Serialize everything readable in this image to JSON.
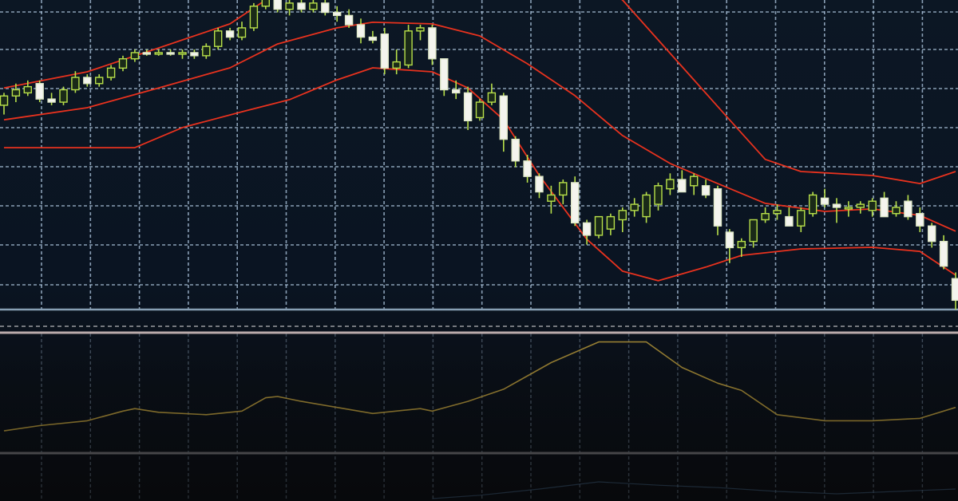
{
  "chart_data": {
    "type": "candlestick",
    "title": "",
    "xlabel": "",
    "ylabel": "",
    "grid": true,
    "ylim": [
      0,
      100
    ],
    "colors": {
      "up": "#b8e04a",
      "down": "#f4f4ee",
      "bands": "#e8321e",
      "indicator": "#b89a3c",
      "indicator2": "#4a6a8c",
      "grid": "#b4cde6",
      "background": "#0b1522"
    },
    "candles": [
      [
        66,
        70,
        63,
        69
      ],
      [
        69,
        73,
        67,
        71
      ],
      [
        70,
        74,
        69,
        72
      ],
      [
        73,
        74,
        67,
        68
      ],
      [
        68,
        70,
        66,
        67
      ],
      [
        67,
        72,
        66,
        71
      ],
      [
        71,
        77,
        70,
        75
      ],
      [
        75,
        76,
        72,
        73
      ],
      [
        73,
        76,
        72,
        75
      ],
      [
        75,
        79,
        74,
        78
      ],
      [
        78,
        82,
        77,
        81
      ],
      [
        81,
        84,
        80,
        83
      ],
      [
        83,
        84,
        82,
        82.5
      ],
      [
        82.5,
        84,
        82,
        83
      ],
      [
        83,
        84,
        82,
        82.5
      ],
      [
        82.5,
        84,
        81,
        83
      ],
      [
        83,
        84,
        81,
        82
      ],
      [
        82,
        86,
        81,
        85
      ],
      [
        85,
        91,
        84,
        90
      ],
      [
        90,
        91,
        87,
        88
      ],
      [
        88,
        93,
        87,
        91
      ],
      [
        91,
        99,
        90,
        98
      ],
      [
        98,
        103,
        97,
        102
      ],
      [
        102,
        104,
        96,
        97
      ],
      [
        97,
        100,
        95,
        99
      ],
      [
        99,
        100,
        96,
        97
      ],
      [
        97,
        100,
        96,
        99
      ],
      [
        99,
        100,
        95,
        96
      ],
      [
        96,
        98,
        93,
        95
      ],
      [
        95,
        97,
        91,
        92
      ],
      [
        92,
        94,
        86,
        88
      ],
      [
        88,
        90,
        86,
        87
      ],
      [
        89,
        91,
        76,
        78
      ],
      [
        78,
        84,
        76,
        80
      ],
      [
        79,
        92,
        78,
        90
      ],
      [
        90,
        92,
        87,
        91
      ],
      [
        91,
        92,
        79,
        81
      ],
      [
        81,
        81,
        69,
        71
      ],
      [
        71,
        74,
        68,
        70
      ],
      [
        70,
        72,
        58,
        61
      ],
      [
        62,
        68,
        61,
        67
      ],
      [
        67,
        73,
        66,
        70
      ],
      [
        69,
        70,
        51,
        55
      ],
      [
        55,
        56,
        46,
        48
      ],
      [
        48,
        50,
        41,
        43
      ],
      [
        43,
        44,
        36,
        38
      ],
      [
        35,
        40,
        31,
        37
      ],
      [
        37,
        42,
        34,
        41
      ],
      [
        41,
        43,
        27,
        28
      ],
      [
        28,
        29,
        21,
        24
      ],
      [
        24,
        30,
        23,
        30
      ],
      [
        26,
        31,
        24,
        30
      ],
      [
        29,
        33,
        25,
        32
      ],
      [
        32,
        36,
        30,
        34
      ],
      [
        30,
        38,
        28,
        37
      ],
      [
        34,
        41,
        32,
        40
      ],
      [
        39,
        44,
        37,
        42
      ],
      [
        42,
        45,
        38,
        38
      ],
      [
        40,
        44,
        37,
        43
      ],
      [
        40,
        42,
        36,
        37
      ],
      [
        39,
        40,
        24,
        27
      ],
      [
        25,
        26,
        15,
        20
      ],
      [
        20,
        23,
        17,
        22
      ],
      [
        22,
        29,
        20,
        29
      ],
      [
        29,
        33,
        28,
        31
      ],
      [
        31,
        34,
        29,
        32
      ],
      [
        30,
        33,
        27,
        27
      ],
      [
        27,
        33,
        25,
        32
      ],
      [
        31,
        38,
        30,
        37
      ],
      [
        36,
        39,
        33,
        34
      ],
      [
        34,
        36,
        28,
        33
      ],
      [
        33,
        35,
        30,
        33
      ],
      [
        33,
        35,
        31,
        34
      ],
      [
        32,
        36,
        30,
        35
      ],
      [
        36,
        38,
        30,
        30
      ],
      [
        31,
        35,
        30,
        33
      ],
      [
        35,
        37,
        29,
        30
      ],
      [
        31,
        33,
        25,
        27
      ],
      [
        27,
        28,
        20,
        22
      ],
      [
        22,
        24,
        13,
        14
      ],
      [
        10,
        12,
        0,
        3
      ]
    ],
    "bands": {
      "upper": [
        [
          0,
          71.6
        ],
        [
          7,
          76.8
        ],
        [
          13,
          84.5
        ],
        [
          19,
          92.3
        ],
        [
          22,
          100
        ],
        [
          30,
          115
        ],
        [
          45,
          115
        ],
        [
          52,
          100
        ],
        [
          55,
          87.1
        ],
        [
          58,
          74.2
        ],
        [
          61,
          61.3
        ],
        [
          64,
          48.5
        ],
        [
          67,
          44.6
        ],
        [
          73,
          43.3
        ],
        [
          77,
          40.7
        ],
        [
          80,
          44.6
        ]
      ],
      "middle": [
        [
          0,
          61.3
        ],
        [
          7,
          65.2
        ],
        [
          13,
          71.6
        ],
        [
          19,
          78.1
        ],
        [
          23,
          85.8
        ],
        [
          28,
          91
        ],
        [
          31,
          92.8
        ],
        [
          36,
          92.3
        ],
        [
          40,
          88.4
        ],
        [
          44,
          79.4
        ],
        [
          48,
          69.1
        ],
        [
          52,
          56.2
        ],
        [
          56,
          47.2
        ],
        [
          60,
          40.7
        ],
        [
          64,
          34.3
        ],
        [
          69,
          31.7
        ],
        [
          73,
          32.5
        ],
        [
          77,
          30.4
        ],
        [
          80,
          25.3
        ]
      ],
      "lower": [
        [
          0,
          52.3
        ],
        [
          11,
          52.3
        ],
        [
          15,
          58.8
        ],
        [
          20,
          63.9
        ],
        [
          24,
          67.8
        ],
        [
          28,
          74.2
        ],
        [
          31,
          78.1
        ],
        [
          36,
          76.8
        ],
        [
          39,
          71.6
        ],
        [
          42,
          61.3
        ],
        [
          45,
          43.3
        ],
        [
          49,
          22.7
        ],
        [
          52,
          12.4
        ],
        [
          55,
          9.3
        ],
        [
          59,
          13.7
        ],
        [
          62,
          17.5
        ],
        [
          67,
          19.6
        ],
        [
          73,
          20.1
        ],
        [
          77,
          18.8
        ],
        [
          80,
          11.1
        ]
      ]
    },
    "indicator": [
      [
        0,
        19.7
      ],
      [
        3,
        24
      ],
      [
        7,
        28
      ],
      [
        10,
        36
      ],
      [
        11,
        38
      ],
      [
        13,
        35
      ],
      [
        17,
        33
      ],
      [
        18,
        34
      ],
      [
        20,
        36
      ],
      [
        22,
        47
      ],
      [
        23,
        48
      ],
      [
        25,
        44
      ],
      [
        28,
        39
      ],
      [
        31,
        34
      ],
      [
        35,
        38
      ],
      [
        36,
        36
      ],
      [
        39,
        44
      ],
      [
        42,
        54
      ],
      [
        46,
        76
      ],
      [
        50,
        93
      ],
      [
        54,
        93
      ],
      [
        57,
        72
      ],
      [
        60,
        59
      ],
      [
        62,
        53
      ],
      [
        65,
        33
      ],
      [
        69,
        28
      ],
      [
        73,
        28
      ],
      [
        77,
        30
      ],
      [
        80,
        39
      ]
    ],
    "indicator2": [
      [
        36,
        5
      ],
      [
        40,
        12
      ],
      [
        45,
        25
      ],
      [
        50,
        40
      ],
      [
        55,
        33
      ],
      [
        60,
        28
      ],
      [
        65,
        20
      ],
      [
        70,
        15
      ],
      [
        75,
        20
      ],
      [
        80,
        25
      ]
    ]
  }
}
